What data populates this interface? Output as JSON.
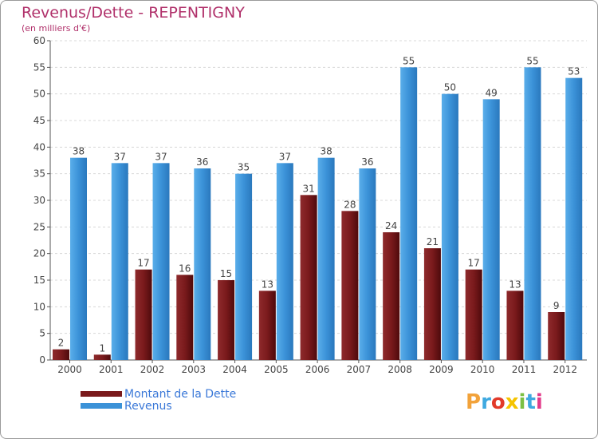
{
  "title": "Revenus/Dette - REPENTIGNY",
  "subtitle": "(en milliers d'€)",
  "brand": {
    "letters": [
      "P",
      "r",
      "o",
      "x",
      "i",
      "t",
      "i"
    ],
    "colors": [
      "#f2a23a",
      "#3fa9e0",
      "#e23a2a",
      "#f5c400",
      "#7bc043",
      "#3fa9e0",
      "#e23a8a"
    ]
  },
  "colors": {
    "debt": "#7a1a1c",
    "revenue": "#3b92d8",
    "grid": "#d8d8d8",
    "axis": "#555555"
  },
  "chart_data": {
    "type": "bar",
    "categories": [
      "2000",
      "2001",
      "2002",
      "2003",
      "2004",
      "2005",
      "2006",
      "2007",
      "2008",
      "2009",
      "2010",
      "2011",
      "2012"
    ],
    "series": [
      {
        "name": "Montant de la Dette",
        "values": [
          2,
          1,
          17,
          16,
          15,
          13,
          31,
          28,
          24,
          21,
          17,
          13,
          9
        ]
      },
      {
        "name": "Revenus",
        "values": [
          38,
          37,
          37,
          36,
          35,
          37,
          38,
          36,
          55,
          50,
          49,
          55,
          53
        ]
      }
    ],
    "ylim": [
      0,
      60
    ],
    "yticks": [
      0,
      5,
      10,
      15,
      20,
      25,
      30,
      35,
      40,
      45,
      50,
      55,
      60
    ],
    "grid": true,
    "legend_position": "bottom-left"
  }
}
